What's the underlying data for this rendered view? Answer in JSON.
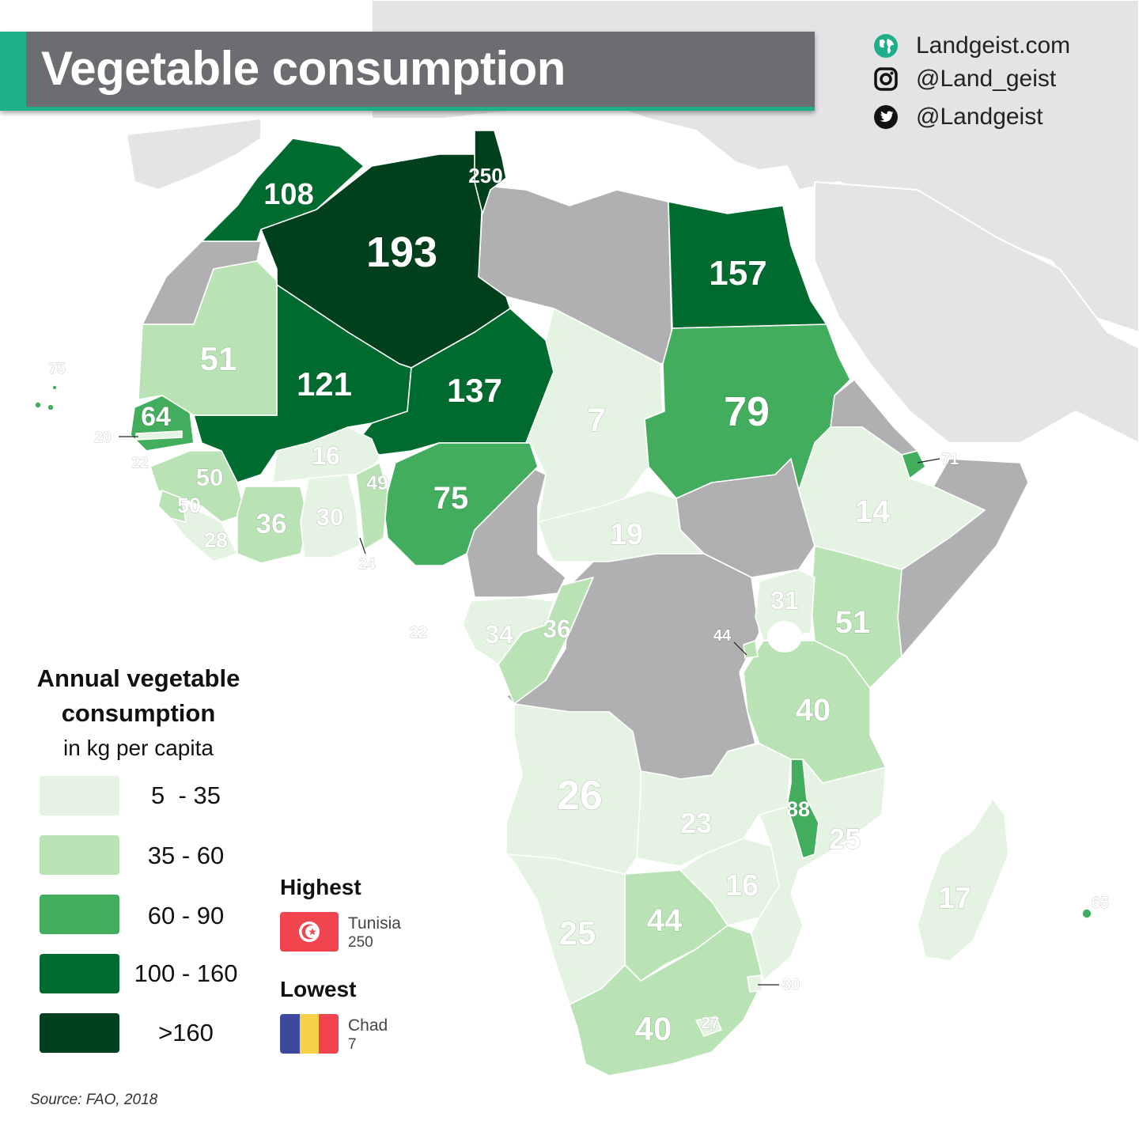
{
  "title": "Vegetable consumption",
  "branding": {
    "website": "Landgeist.com",
    "instagram": "@Land_geist",
    "twitter": "@Landgeist"
  },
  "legend": {
    "title_line1": "Annual vegetable",
    "title_line2": "consumption",
    "subtitle": "in kg per capita",
    "bins": [
      {
        "label": "5  - 35",
        "color": "#e5f4e2"
      },
      {
        "label": "35 - 60",
        "color": "#b9e3b5"
      },
      {
        "label": "60 - 90",
        "color": "#43ad5e"
      },
      {
        "label": "100 - 160",
        "color": "#006b2f"
      },
      {
        "label": ">160",
        "color": "#00401c"
      }
    ],
    "no_data_color": "#b0b0b2"
  },
  "highest": {
    "heading": "Highest",
    "country": "Tunisia",
    "value": "250"
  },
  "lowest": {
    "heading": "Lowest",
    "country": "Chad",
    "value": "7"
  },
  "source": "Source: FAO, 2018",
  "map_values": [
    {
      "country": "Tunisia",
      "value": "250"
    },
    {
      "country": "Morocco",
      "value": "108"
    },
    {
      "country": "Algeria",
      "value": "193"
    },
    {
      "country": "Egypt",
      "value": "157"
    },
    {
      "country": "Mauritania",
      "value": "51"
    },
    {
      "country": "Mali",
      "value": "121"
    },
    {
      "country": "Niger",
      "value": "137"
    },
    {
      "country": "Chad",
      "value": "7"
    },
    {
      "country": "Sudan",
      "value": "79"
    },
    {
      "country": "Cabo Verde",
      "value": "75"
    },
    {
      "country": "Senegal",
      "value": "64"
    },
    {
      "country": "Gambia",
      "value": "20"
    },
    {
      "country": "Guinea-Bissau",
      "value": "22"
    },
    {
      "country": "Guinea",
      "value": "50"
    },
    {
      "country": "Sierra Leone",
      "value": "50"
    },
    {
      "country": "Liberia",
      "value": "28"
    },
    {
      "country": "Burkina Faso",
      "value": "16"
    },
    {
      "country": "Benin",
      "value": "49"
    },
    {
      "country": "Nigeria",
      "value": "75"
    },
    {
      "country": "Cote d'Ivoire",
      "value": "36"
    },
    {
      "country": "Ghana",
      "value": "30"
    },
    {
      "country": "Togo",
      "value": "24"
    },
    {
      "country": "Central African Republic",
      "value": "19"
    },
    {
      "country": "Djibouti",
      "value": "71"
    },
    {
      "country": "Ethiopia",
      "value": "14"
    },
    {
      "country": "Sao Tome and Principe",
      "value": "22"
    },
    {
      "country": "Gabon",
      "value": "34"
    },
    {
      "country": "Congo",
      "value": "36"
    },
    {
      "country": "Uganda",
      "value": "31"
    },
    {
      "country": "Kenya",
      "value": "51"
    },
    {
      "country": "Rwanda",
      "value": "44"
    },
    {
      "country": "Tanzania",
      "value": "40"
    },
    {
      "country": "Angola",
      "value": "26"
    },
    {
      "country": "Zambia",
      "value": "23"
    },
    {
      "country": "Malawi",
      "value": "88"
    },
    {
      "country": "Mozambique",
      "value": "25"
    },
    {
      "country": "Zimbabwe",
      "value": "16"
    },
    {
      "country": "Madagascar",
      "value": "17"
    },
    {
      "country": "Mauritius",
      "value": "65"
    },
    {
      "country": "Namibia",
      "value": "25"
    },
    {
      "country": "Botswana",
      "value": "44"
    },
    {
      "country": "Eswatini",
      "value": "30"
    },
    {
      "country": "Lesotho",
      "value": "27"
    },
    {
      "country": "South Africa",
      "value": "40"
    }
  ]
}
